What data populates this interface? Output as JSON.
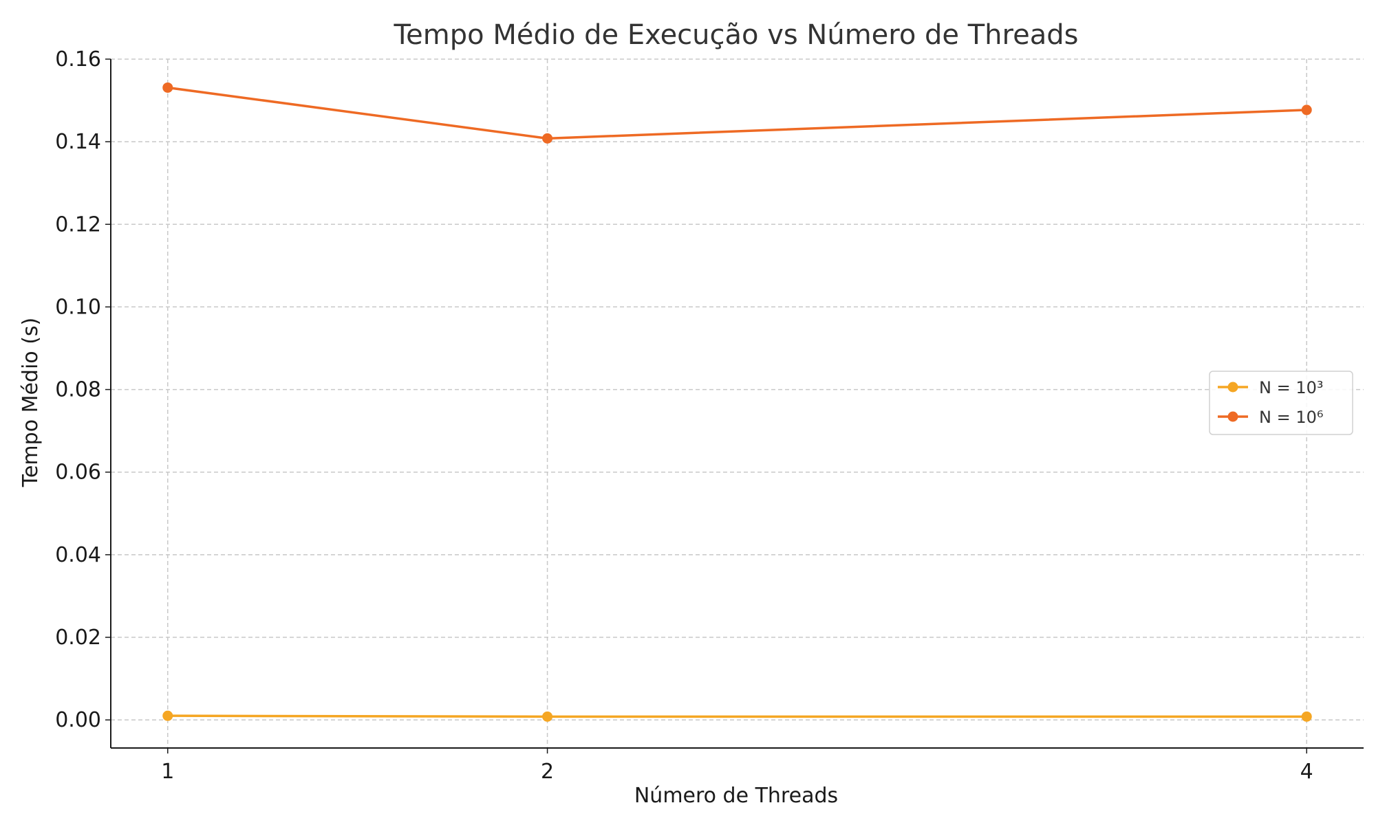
{
  "chart_data": {
    "type": "line",
    "title": "Tempo Médio de Execução vs Número de Threads",
    "xlabel": "Número de Threads",
    "ylabel": "Tempo Médio (s)",
    "x": [
      1,
      2,
      4
    ],
    "x_tick_labels": [
      "1",
      "2",
      "4"
    ],
    "xlim": [
      0.85,
      4.15
    ],
    "ylim": [
      -0.0068,
      0.16
    ],
    "y_ticks": [
      0.0,
      0.02,
      0.04,
      0.06,
      0.08,
      0.1,
      0.12,
      0.14,
      0.16
    ],
    "y_tick_labels": [
      "0.00",
      "0.02",
      "0.04",
      "0.06",
      "0.08",
      "0.10",
      "0.12",
      "0.14",
      "0.16"
    ],
    "grid": true,
    "legend_position": "center-right",
    "series": [
      {
        "name": "N = 10³",
        "color": "#f5a623",
        "values": [
          0.001,
          0.0008,
          0.0008
        ]
      },
      {
        "name": "N = 10⁶",
        "color": "#ee6a24",
        "values": [
          0.1531,
          0.1408,
          0.1477
        ]
      }
    ]
  }
}
